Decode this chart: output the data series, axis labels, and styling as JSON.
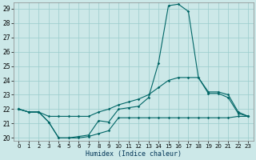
{
  "xlabel": "Humidex (Indice chaleur)",
  "bg_color": "#cce8e8",
  "grid_color": "#99cccc",
  "line_color": "#006666",
  "xlim": [
    -0.5,
    23.5
  ],
  "ylim": [
    19.8,
    29.4
  ],
  "yticks": [
    20,
    21,
    22,
    23,
    24,
    25,
    26,
    27,
    28,
    29
  ],
  "xticks": [
    0,
    1,
    2,
    3,
    4,
    5,
    6,
    7,
    8,
    9,
    10,
    11,
    12,
    13,
    14,
    15,
    16,
    17,
    18,
    19,
    20,
    21,
    22,
    23
  ],
  "series1_x": [
    0,
    1,
    2,
    3,
    4,
    5,
    6,
    7,
    8,
    9,
    10,
    11,
    12,
    13,
    14,
    15,
    16,
    17,
    18,
    19,
    20,
    21,
    22,
    23
  ],
  "series1_y": [
    22.0,
    21.8,
    21.8,
    21.1,
    20.0,
    20.0,
    20.1,
    20.2,
    21.2,
    21.1,
    22.0,
    22.1,
    22.2,
    22.8,
    25.2,
    29.2,
    29.3,
    28.8,
    24.2,
    23.1,
    23.1,
    22.8,
    21.7,
    21.5
  ],
  "series2_x": [
    0,
    1,
    2,
    3,
    4,
    5,
    6,
    7,
    8,
    9,
    10,
    11,
    12,
    13,
    14,
    15,
    16,
    17,
    18,
    19,
    20,
    21,
    22,
    23
  ],
  "series2_y": [
    22.0,
    21.8,
    21.8,
    21.1,
    20.0,
    20.0,
    20.0,
    20.1,
    20.3,
    20.5,
    21.4,
    21.4,
    21.4,
    21.4,
    21.4,
    21.4,
    21.4,
    21.4,
    21.4,
    21.4,
    21.4,
    21.4,
    21.5,
    21.5
  ],
  "series3_x": [
    0,
    1,
    2,
    3,
    4,
    5,
    6,
    7,
    8,
    9,
    10,
    11,
    12,
    13,
    14,
    15,
    16,
    17,
    18,
    19,
    20,
    21,
    22,
    23
  ],
  "series3_y": [
    22.0,
    21.8,
    21.8,
    21.5,
    21.5,
    21.5,
    21.5,
    21.5,
    21.8,
    22.0,
    22.3,
    22.5,
    22.7,
    23.0,
    23.5,
    24.0,
    24.2,
    24.2,
    24.2,
    23.2,
    23.2,
    23.0,
    21.8,
    21.5
  ]
}
